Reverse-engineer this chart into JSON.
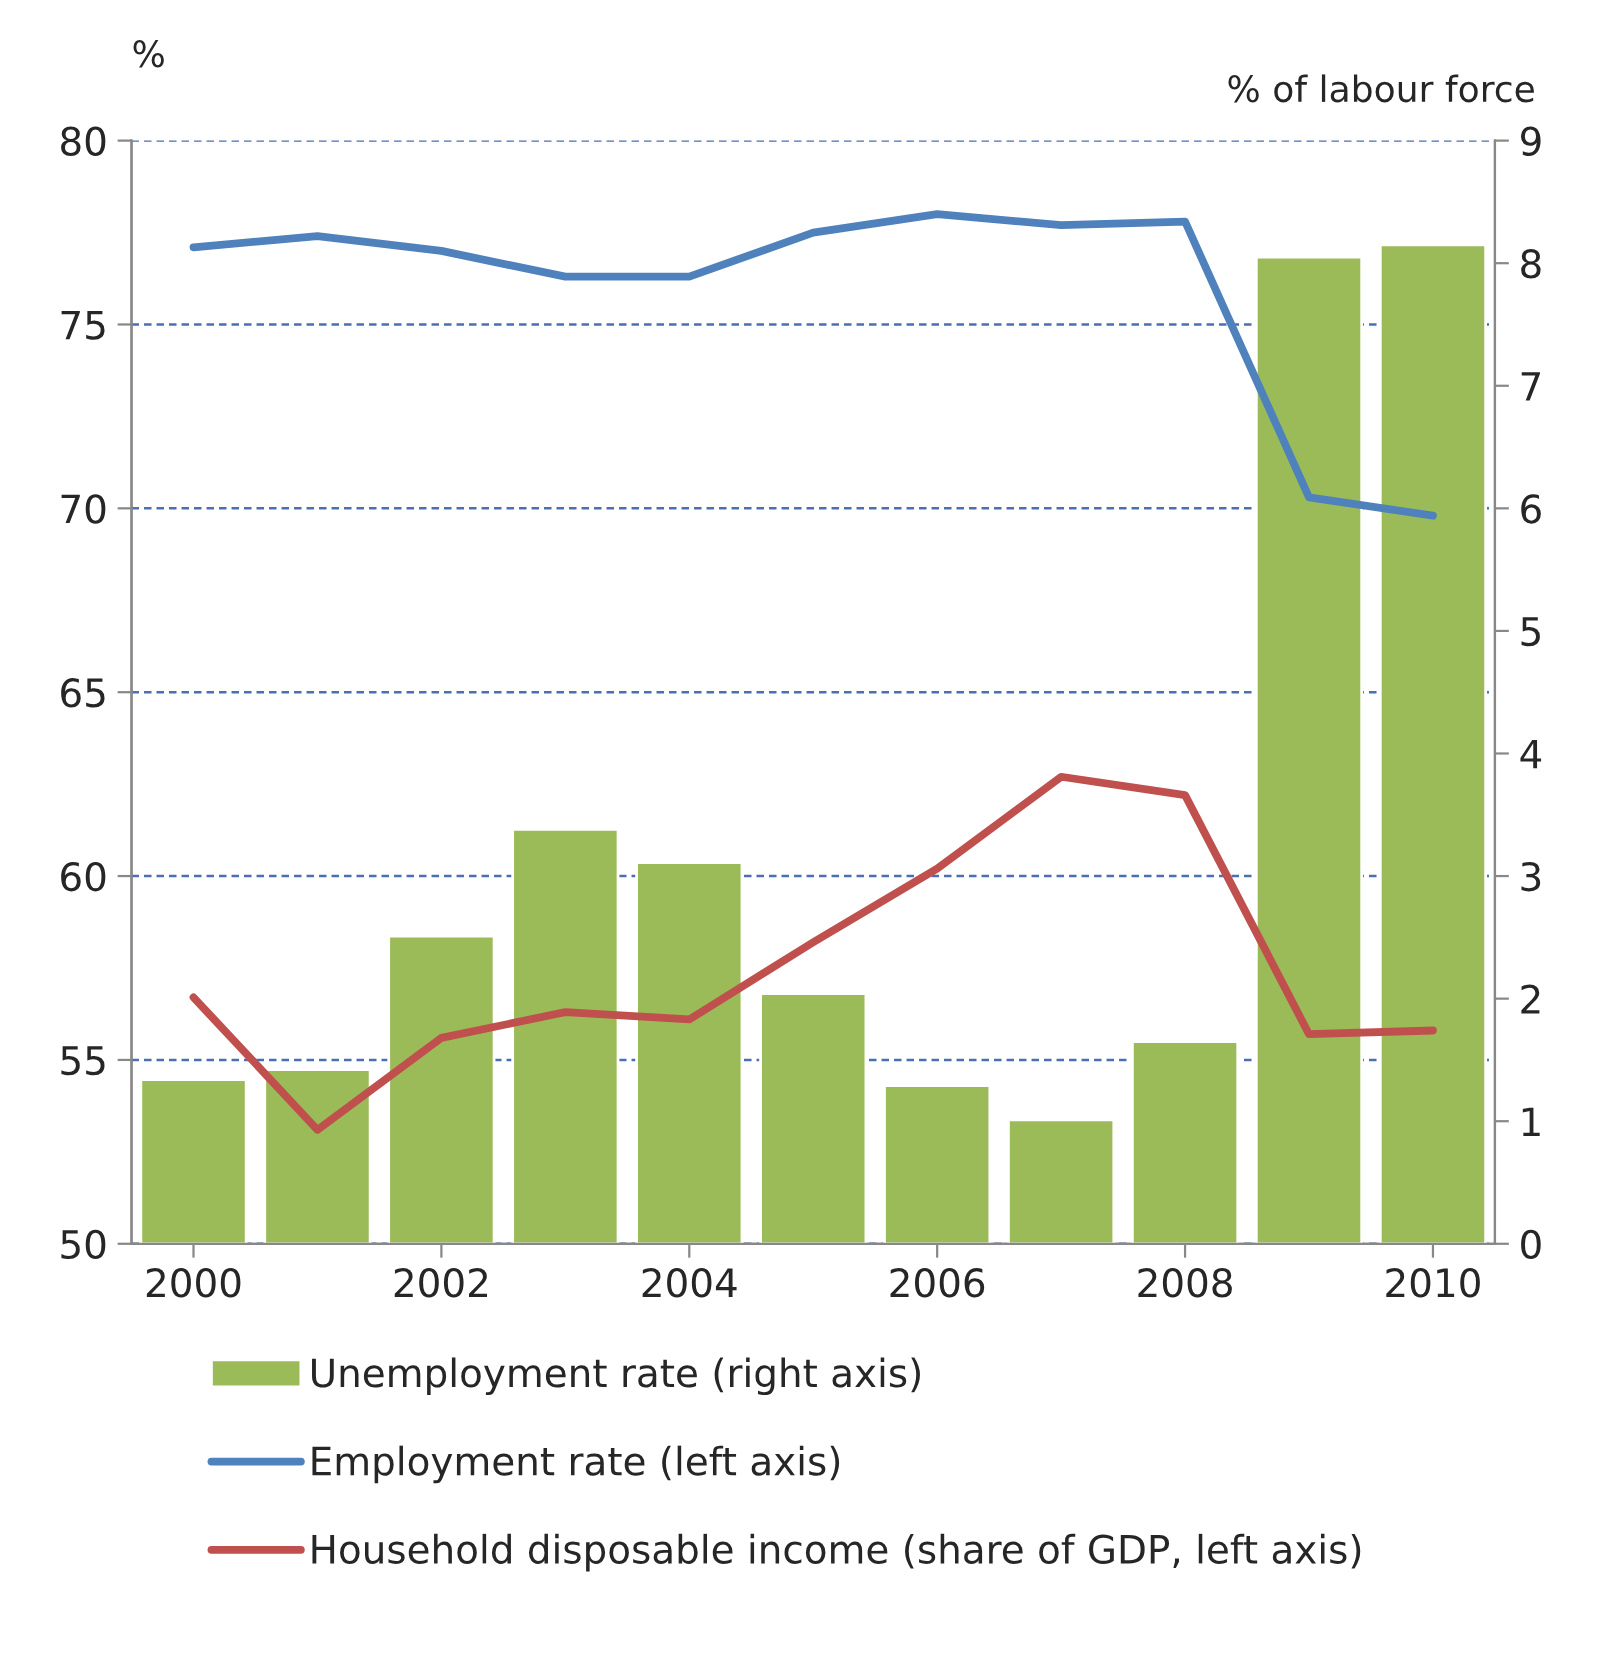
{
  "chart_data": {
    "type": "bar",
    "ylabel": "%",
    "y2label": "% of labour force",
    "x": [
      2000,
      2001,
      2002,
      2003,
      2004,
      2005,
      2006,
      2007,
      2008,
      2009,
      2010
    ],
    "xlim": [
      1999.5,
      2010.5
    ],
    "xticks": [
      2000,
      2002,
      2004,
      2006,
      2008,
      2010
    ],
    "ylim": [
      50,
      80
    ],
    "yticks": [
      50,
      55,
      60,
      65,
      70,
      75,
      80
    ],
    "y2lim": [
      0,
      9
    ],
    "y2ticks": [
      0,
      1,
      2,
      3,
      4,
      5,
      6,
      7,
      8,
      9
    ],
    "grid": "y",
    "legend": "bottom",
    "marker": "none",
    "line_style": "solid",
    "series": [
      {
        "name": "Unemployment rate (right axis)",
        "axis": "y2",
        "color": "#9bbb59",
        "values": [
          1.34,
          1.42,
          2.51,
          3.38,
          3.11,
          2.04,
          1.29,
          1.01,
          1.65,
          8.05,
          8.15
        ]
      },
      {
        "name": "Employment rate (left axis)",
        "type": "line",
        "axis": "y",
        "color": "#4f81bd",
        "values": [
          77.1,
          77.4,
          77.0,
          76.3,
          76.3,
          77.5,
          78.0,
          77.7,
          77.8,
          70.3,
          69.8
        ]
      },
      {
        "name": "Household disposable income (share of GDP, left axis)",
        "type": "line",
        "axis": "y",
        "color": "#c0504d",
        "values": [
          56.7,
          53.1,
          55.6,
          56.3,
          56.1,
          58.2,
          60.2,
          62.7,
          62.2,
          55.7,
          55.8
        ]
      }
    ]
  }
}
